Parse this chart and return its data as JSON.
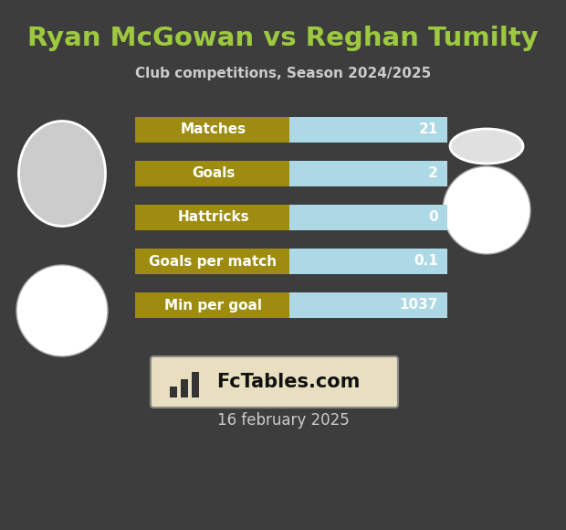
{
  "title": "Ryan McGowan vs Reghan Tumilty",
  "subtitle": "Club competitions, Season 2024/2025",
  "date": "16 february 2025",
  "background_color": "#3d3d3d",
  "title_color": "#9dc940",
  "subtitle_color": "#cccccc",
  "date_color": "#cccccc",
  "stats": [
    {
      "label": "Matches",
      "value": "21"
    },
    {
      "label": "Goals",
      "value": "2"
    },
    {
      "label": "Hattricks",
      "value": "0"
    },
    {
      "label": "Goals per match",
      "value": "0.1"
    },
    {
      "label": "Min per goal",
      "value": "1037"
    }
  ],
  "bar_left_color": "#9d8c10",
  "bar_right_color": "#add8e6",
  "label_fontsize": 11,
  "value_fontsize": 11,
  "watermark_text": "FcTables.com",
  "watermark_bg": "#e8dfc0",
  "watermark_border": "#888888"
}
